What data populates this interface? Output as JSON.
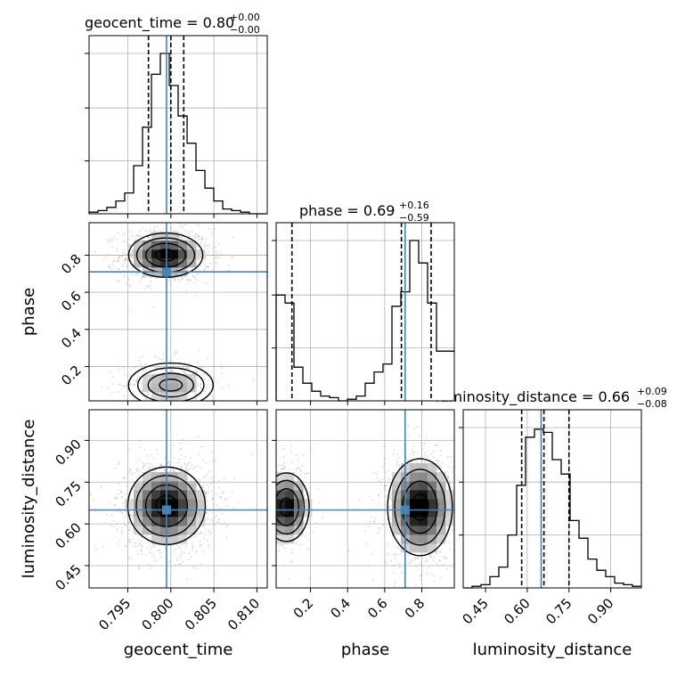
{
  "chart_data": {
    "type": "corner",
    "parameters": [
      "geocent_time",
      "phase",
      "luminosity_distance"
    ],
    "truth": {
      "geocent_time": 0.7995,
      "phase": 0.71,
      "luminosity_distance": 0.65
    },
    "colors": {
      "truth": "#4682b4",
      "hist": "#000000",
      "grid": "#b0b0b0",
      "points": "#8c8c8c"
    },
    "titles": [
      {
        "param": "geocent_time",
        "label": "geocent_time = 0.80",
        "plus": "+0.00",
        "minus": "−0.00"
      },
      {
        "param": "phase",
        "label": "phase = 0.69",
        "plus": "+0.16",
        "minus": "−0.59"
      },
      {
        "param": "luminosity_distance",
        "label": "luminosity_distance = 0.66",
        "plus": "+0.09",
        "minus": "−0.08"
      }
    ],
    "axes": {
      "geocent_time": {
        "range": [
          0.7905,
          0.8112
        ],
        "ticks": [
          0.795,
          0.8,
          0.805,
          0.81
        ],
        "tick_labels": [
          "0.795",
          "0.800",
          "0.805",
          "0.810"
        ],
        "label": "geocent_time"
      },
      "phase": {
        "range": [
          0.015,
          0.975
        ],
        "ticks": [
          0.2,
          0.4,
          0.6,
          0.8
        ],
        "tick_labels": [
          "0.2",
          "0.4",
          "0.6",
          "0.8"
        ],
        "label": "phase"
      },
      "luminosity_distance": {
        "range": [
          0.37,
          1.01
        ],
        "ticks": [
          0.45,
          0.6,
          0.75,
          0.9
        ],
        "tick_labels": [
          "0.45",
          "0.60",
          "0.75",
          "0.90"
        ],
        "label": "luminosity_distance"
      }
    },
    "histograms": {
      "geocent_time": {
        "edges": [
          0.7905,
          0.79154,
          0.79257,
          0.79361,
          0.79464,
          0.79568,
          0.79671,
          0.79775,
          0.79878,
          0.79982,
          0.80085,
          0.80189,
          0.80292,
          0.80396,
          0.80499,
          0.80603,
          0.80706,
          0.8081,
          0.80913,
          0.81017,
          0.8112
        ],
        "heights": [
          0.01,
          0.02,
          0.04,
          0.08,
          0.13,
          0.3,
          0.54,
          0.87,
          1.0,
          0.8,
          0.61,
          0.44,
          0.27,
          0.16,
          0.08,
          0.03,
          0.02,
          0.01,
          0.0,
          0.0
        ],
        "quantiles": [
          0.7974,
          0.8,
          0.8015
        ]
      },
      "phase": {
        "edges": [
          0.015,
          0.063,
          0.111,
          0.159,
          0.207,
          0.255,
          0.303,
          0.351,
          0.399,
          0.447,
          0.495,
          0.543,
          0.591,
          0.639,
          0.687,
          0.735,
          0.783,
          0.831,
          0.879,
          0.927,
          0.975
        ],
        "heights": [
          0.66,
          0.61,
          0.21,
          0.11,
          0.06,
          0.03,
          0.02,
          0.0,
          0.01,
          0.03,
          0.11,
          0.18,
          0.23,
          0.59,
          0.68,
          1.0,
          0.86,
          0.61,
          0.31,
          0.31
        ],
        "quantiles": [
          0.1,
          0.69,
          0.85
        ]
      },
      "luminosity_distance": {
        "edges": [
          0.37,
          0.402,
          0.434,
          0.466,
          0.498,
          0.53,
          0.562,
          0.594,
          0.626,
          0.658,
          0.69,
          0.722,
          0.754,
          0.786,
          0.818,
          0.85,
          0.882,
          0.914,
          0.946,
          0.978,
          1.01
        ],
        "heights": [
          0.0,
          0.01,
          0.02,
          0.07,
          0.13,
          0.33,
          0.64,
          0.94,
          0.99,
          0.97,
          0.8,
          0.71,
          0.42,
          0.31,
          0.18,
          0.11,
          0.07,
          0.03,
          0.02,
          0.01
        ],
        "quantiles": [
          0.58,
          0.66,
          0.75
        ]
      }
    },
    "density_pairs": [
      {
        "x": "geocent_time",
        "y": "phase",
        "modes": [
          {
            "mx": 0.7994,
            "my": 0.8,
            "sx": 0.0021,
            "sy": 0.058,
            "weight": 0.72
          },
          {
            "mx": 0.8,
            "my": 0.1,
            "sx": 0.0024,
            "sy": 0.058,
            "weight": 0.28
          }
        ]
      },
      {
        "x": "geocent_time",
        "y": "luminosity_distance",
        "modes": [
          {
            "mx": 0.7995,
            "my": 0.665,
            "sx": 0.0022,
            "sy": 0.068,
            "weight": 1.0
          }
        ]
      },
      {
        "x": "phase",
        "y": "luminosity_distance",
        "modes": [
          {
            "mx": 0.07,
            "my": 0.66,
            "sx": 0.06,
            "sy": 0.06,
            "weight": 0.32
          },
          {
            "mx": 0.79,
            "my": 0.66,
            "sx": 0.085,
            "sy": 0.085,
            "weight": 0.68
          }
        ]
      }
    ],
    "grid": true
  }
}
